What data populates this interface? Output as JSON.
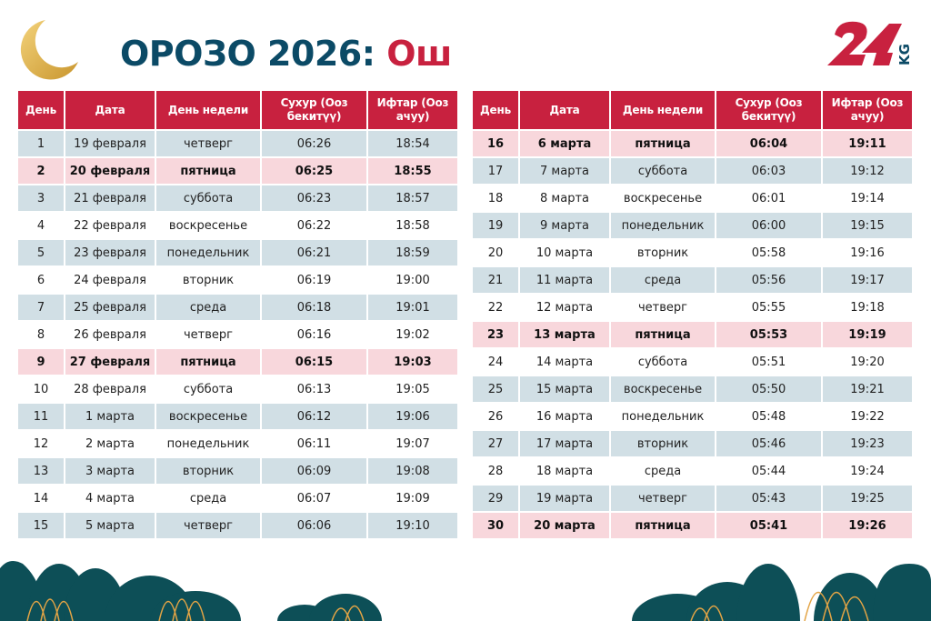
{
  "title": {
    "main": "ОРОЗО 2026:",
    "city": "Ош"
  },
  "logo": {
    "text": "24",
    "suffix": "KG"
  },
  "colors": {
    "header": "#c8213f",
    "title": "#0b4a66",
    "row_blue": "#d1dfe5",
    "friday": "#f8d7dc"
  },
  "columns": [
    "День",
    "Дата",
    "День недели",
    "Сухур (Ооз бекитүү)",
    "Ифтар (Ооз ачуу)"
  ],
  "tables": [
    [
      {
        "day": "1",
        "date": "19 февраля",
        "weekday": "четверг",
        "suhur": "06:26",
        "iftar": "18:54",
        "highlight": false
      },
      {
        "day": "2",
        "date": "20 февраля",
        "weekday": "пятница",
        "suhur": "06:25",
        "iftar": "18:55",
        "highlight": true
      },
      {
        "day": "3",
        "date": "21 февраля",
        "weekday": "суббота",
        "suhur": "06:23",
        "iftar": "18:57",
        "highlight": false
      },
      {
        "day": "4",
        "date": "22 февраля",
        "weekday": "воскресенье",
        "suhur": "06:22",
        "iftar": "18:58",
        "highlight": false
      },
      {
        "day": "5",
        "date": "23 февраля",
        "weekday": "понедельник",
        "suhur": "06:21",
        "iftar": "18:59",
        "highlight": false
      },
      {
        "day": "6",
        "date": "24 февраля",
        "weekday": "вторник",
        "suhur": "06:19",
        "iftar": "19:00",
        "highlight": false
      },
      {
        "day": "7",
        "date": "25 февраля",
        "weekday": "среда",
        "suhur": "06:18",
        "iftar": "19:01",
        "highlight": false
      },
      {
        "day": "8",
        "date": "26 февраля",
        "weekday": "четверг",
        "suhur": "06:16",
        "iftar": "19:02",
        "highlight": false
      },
      {
        "day": "9",
        "date": "27 февраля",
        "weekday": "пятница",
        "suhur": "06:15",
        "iftar": "19:03",
        "highlight": true
      },
      {
        "day": "10",
        "date": "28 февраля",
        "weekday": "суббота",
        "suhur": "06:13",
        "iftar": "19:05",
        "highlight": false
      },
      {
        "day": "11",
        "date": "1 марта",
        "weekday": "воскресенье",
        "suhur": "06:12",
        "iftar": "19:06",
        "highlight": false
      },
      {
        "day": "12",
        "date": "2 марта",
        "weekday": "понедельник",
        "suhur": "06:11",
        "iftar": "19:07",
        "highlight": false
      },
      {
        "day": "13",
        "date": "3 марта",
        "weekday": "вторник",
        "suhur": "06:09",
        "iftar": "19:08",
        "highlight": false
      },
      {
        "day": "14",
        "date": "4 марта",
        "weekday": "среда",
        "suhur": "06:07",
        "iftar": "19:09",
        "highlight": false
      },
      {
        "day": "15",
        "date": "5 марта",
        "weekday": "четверг",
        "suhur": "06:06",
        "iftar": "19:10",
        "highlight": false
      }
    ],
    [
      {
        "day": "16",
        "date": "6 марта",
        "weekday": "пятница",
        "suhur": "06:04",
        "iftar": "19:11",
        "highlight": true
      },
      {
        "day": "17",
        "date": "7 марта",
        "weekday": "суббота",
        "suhur": "06:03",
        "iftar": "19:12",
        "highlight": false
      },
      {
        "day": "18",
        "date": "8 марта",
        "weekday": "воскресенье",
        "suhur": "06:01",
        "iftar": "19:14",
        "highlight": false
      },
      {
        "day": "19",
        "date": "9 марта",
        "weekday": "понедельник",
        "suhur": "06:00",
        "iftar": "19:15",
        "highlight": false
      },
      {
        "day": "20",
        "date": "10 марта",
        "weekday": "вторник",
        "suhur": "05:58",
        "iftar": "19:16",
        "highlight": false
      },
      {
        "day": "21",
        "date": "11 марта",
        "weekday": "среда",
        "suhur": "05:56",
        "iftar": "19:17",
        "highlight": false
      },
      {
        "day": "22",
        "date": "12 марта",
        "weekday": "четверг",
        "suhur": "05:55",
        "iftar": "19:18",
        "highlight": false
      },
      {
        "day": "23",
        "date": "13 марта",
        "weekday": "пятница",
        "suhur": "05:53",
        "iftar": "19:19",
        "highlight": true
      },
      {
        "day": "24",
        "date": "14 марта",
        "weekday": "суббота",
        "suhur": "05:51",
        "iftar": "19:20",
        "highlight": false
      },
      {
        "day": "25",
        "date": "15 марта",
        "weekday": "воскресенье",
        "suhur": "05:50",
        "iftar": "19:21",
        "highlight": false
      },
      {
        "day": "26",
        "date": "16 марта",
        "weekday": "понедельник",
        "suhur": "05:48",
        "iftar": "19:22",
        "highlight": false
      },
      {
        "day": "27",
        "date": "17 марта",
        "weekday": "вторник",
        "suhur": "05:46",
        "iftar": "19:23",
        "highlight": false
      },
      {
        "day": "28",
        "date": "18 марта",
        "weekday": "среда",
        "suhur": "05:44",
        "iftar": "19:24",
        "highlight": false
      },
      {
        "day": "29",
        "date": "19 марта",
        "weekday": "четверг",
        "suhur": "05:43",
        "iftar": "19:25",
        "highlight": false
      },
      {
        "day": "30",
        "date": "20 марта",
        "weekday": "пятница",
        "suhur": "05:41",
        "iftar": "19:26",
        "highlight": true
      }
    ]
  ]
}
